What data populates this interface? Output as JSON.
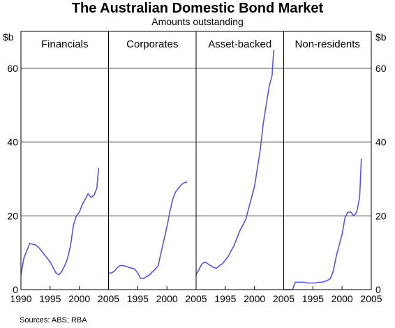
{
  "chart_data": {
    "type": "line",
    "title": "The Australian Domestic Bond Market",
    "subtitle": "Amounts outstanding",
    "ylabel_left": "$b",
    "ylabel_right": "$b",
    "ylim": [
      0,
      70
    ],
    "yticks": [
      0,
      20,
      40,
      60
    ],
    "xlim": [
      1990,
      2005
    ],
    "xticks": [
      1990,
      1995,
      2000,
      2005
    ],
    "grid": true,
    "line_color": "#5555dd",
    "source": "Sources: ABS; RBA",
    "panels": [
      {
        "name": "Financials",
        "x": [
          1990,
          1990.5,
          1991,
          1991.5,
          1992,
          1992.5,
          1993,
          1993.5,
          1994,
          1994.5,
          1995,
          1995.5,
          1996,
          1996.5,
          1997,
          1997.5,
          1998,
          1998.5,
          1999,
          1999.5,
          2000,
          2000.5,
          2001,
          2001.5,
          2002,
          2002.5,
          2003,
          2003.3
        ],
        "y": [
          4,
          8.5,
          10.5,
          12.5,
          12.3,
          12.1,
          11.5,
          10.5,
          9.5,
          8.5,
          7.5,
          6,
          4.5,
          4,
          5,
          6.5,
          8.5,
          12,
          17.5,
          20,
          21,
          23,
          24.5,
          26,
          25,
          25.5,
          27.5,
          33
        ]
      },
      {
        "name": "Corporates",
        "x": [
          1990,
          1990.5,
          1991,
          1991.5,
          1992,
          1992.5,
          1993,
          1993.5,
          1994,
          1994.5,
          1995,
          1995.5,
          1996,
          1996.5,
          1997,
          1997.5,
          1998,
          1998.5,
          1999,
          1999.5,
          2000,
          2000.5,
          2001,
          2001.5,
          2002,
          2002.5,
          2003,
          2003.5
        ],
        "y": [
          4.5,
          4.5,
          5,
          6,
          6.5,
          6.5,
          6.3,
          6,
          5.8,
          5.5,
          4.5,
          3,
          3,
          3.5,
          4,
          4.8,
          5.5,
          6.5,
          10,
          13.5,
          17,
          21,
          24.5,
          26.5,
          27.5,
          28.5,
          29,
          29.2
        ]
      },
      {
        "name": "Asset-backed",
        "x": [
          1990,
          1990.5,
          1991,
          1991.5,
          1992,
          1992.5,
          1993,
          1993.5,
          1994,
          1994.5,
          1995,
          1995.5,
          1996,
          1996.5,
          1997,
          1997.5,
          1998,
          1998.5,
          1999,
          1999.5,
          2000,
          2000.5,
          2001,
          2001.5,
          2002,
          2002.5,
          2003,
          2003.3
        ],
        "y": [
          4,
          5.5,
          7,
          7.5,
          7,
          6.5,
          6,
          5.8,
          6.5,
          7,
          8,
          9,
          10.5,
          12,
          14,
          16,
          17.5,
          19,
          22,
          25,
          28,
          33,
          38,
          45,
          50,
          55,
          58,
          65
        ]
      },
      {
        "name": "Non-residents",
        "x": [
          1990,
          1990.5,
          1991,
          1991.5,
          1992,
          1992.5,
          1993,
          1993.5,
          1994,
          1994.5,
          1995,
          1995.5,
          1996,
          1996.5,
          1997,
          1997.5,
          1998,
          1998.5,
          1999,
          1999.5,
          2000,
          2000.5,
          2001,
          2001.5,
          2002,
          2002.5,
          2003,
          2003.3
        ],
        "y": [
          0,
          0,
          0,
          0,
          2,
          2,
          2,
          2,
          1.8,
          1.8,
          1.8,
          1.8,
          2,
          2,
          2.2,
          2.5,
          3,
          5,
          9,
          12,
          15,
          19.5,
          21,
          21,
          20,
          21,
          25,
          35.5
        ]
      }
    ]
  }
}
